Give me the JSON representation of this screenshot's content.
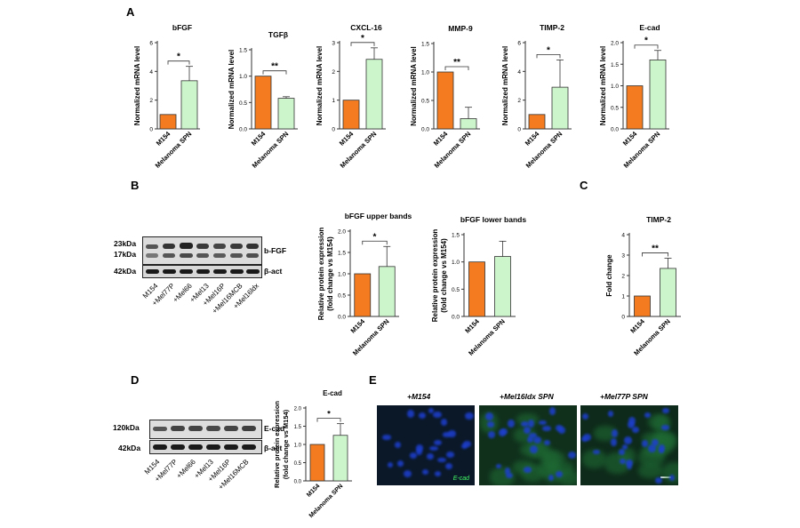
{
  "panels": {
    "A": "A",
    "B": "B",
    "C": "C",
    "D": "D",
    "E": "E"
  },
  "colors": {
    "control": "#f47b20",
    "treated": "#ccf5cc",
    "stroke": "#333333"
  },
  "chart_data": [
    {
      "id": "bfgf",
      "type": "bar",
      "title": "bFGF",
      "ylabel": "Normalized mRNA level",
      "categories": [
        "M154",
        "Melanoma SPN"
      ],
      "values": [
        1.0,
        3.35
      ],
      "errors": [
        0,
        1.0
      ],
      "ylim": [
        0,
        6
      ],
      "yticks": [
        "0",
        "2",
        "4",
        "6"
      ],
      "sig": "*"
    },
    {
      "id": "tgfb",
      "type": "bar",
      "title": "TGFβ",
      "ylabel": "Normalized mRNA level",
      "categories": [
        "M154",
        "Melanoma SPN"
      ],
      "values": [
        1.0,
        0.58
      ],
      "errors": [
        0,
        0.03
      ],
      "ylim": [
        0,
        1.5
      ],
      "yticks": [
        "0.0",
        "0.5",
        "1.0",
        "1.5"
      ],
      "sig": "**"
    },
    {
      "id": "cxcl16",
      "type": "bar",
      "title": "CXCL-16",
      "ylabel": "Normalized mRNA level",
      "categories": [
        "M154",
        "Melanoma SPN"
      ],
      "values": [
        1.0,
        2.42
      ],
      "errors": [
        0,
        0.4
      ],
      "ylim": [
        0,
        3
      ],
      "yticks": [
        "0",
        "1",
        "2",
        "3"
      ],
      "sig": "*"
    },
    {
      "id": "mmp9",
      "type": "bar",
      "title": "MMP-9",
      "ylabel": "Normalized mRNA level",
      "categories": [
        "M154",
        "Melanoma SPN"
      ],
      "values": [
        1.0,
        0.18
      ],
      "errors": [
        0,
        0.2
      ],
      "ylim": [
        0,
        1.5
      ],
      "yticks": [
        "0.0",
        "0.5",
        "1.0",
        "1.5"
      ],
      "sig": "**"
    },
    {
      "id": "timp2a",
      "type": "bar",
      "title": "TIMP-2",
      "ylabel": "Normalized mRNA level",
      "categories": [
        "M154",
        "Melanoma SPN"
      ],
      "values": [
        1.0,
        2.9
      ],
      "errors": [
        0,
        1.9
      ],
      "ylim": [
        0,
        6
      ],
      "yticks": [
        "0",
        "2",
        "4",
        "6"
      ],
      "sig": "*"
    },
    {
      "id": "ecad_mrna",
      "type": "bar",
      "title": "E-cad",
      "ylabel": "Normalized mRNA level",
      "categories": [
        "M154",
        "Melanoma SPN"
      ],
      "values": [
        1.0,
        1.6
      ],
      "errors": [
        0,
        0.22
      ],
      "ylim": [
        0,
        2.0
      ],
      "yticks": [
        "0.0",
        "0.5",
        "1.0",
        "1.5",
        "2.0"
      ],
      "sig": "*"
    },
    {
      "id": "bfgf_upper",
      "type": "bar",
      "title": "bFGF upper bands",
      "ylabel": "Relative protein expression",
      "ylabel2": "(fold change vs M154)",
      "categories": [
        "M154",
        "Melanoma SPN"
      ],
      "values": [
        1.0,
        1.17
      ],
      "errors": [
        0,
        0.47
      ],
      "ylim": [
        0,
        2.0
      ],
      "yticks": [
        "0.0",
        "0.5",
        "1.0",
        "1.5",
        "2.0"
      ],
      "sig": "*"
    },
    {
      "id": "bfgf_lower",
      "type": "bar",
      "title": "bFGF lower bands",
      "ylabel": "Relative protein expression",
      "ylabel2": "(fold change vs M154)",
      "categories": [
        "M154",
        "Melanoma SPN"
      ],
      "values": [
        1.0,
        1.1
      ],
      "errors": [
        0,
        0.28
      ],
      "ylim": [
        0,
        1.5
      ],
      "yticks": [
        "0.0",
        "0.5",
        "1.0",
        "1.5"
      ],
      "sig": ""
    },
    {
      "id": "timp2c",
      "type": "bar",
      "title": "TIMP-2",
      "ylabel": "Fold change",
      "categories": [
        "M154",
        "Melanoma SPN"
      ],
      "values": [
        1.0,
        2.35
      ],
      "errors": [
        0,
        0.5
      ],
      "ylim": [
        0,
        4
      ],
      "yticks": [
        "0",
        "1",
        "2",
        "3",
        "4"
      ],
      "sig": "**"
    },
    {
      "id": "ecad_protein",
      "type": "bar",
      "title": "E-cad",
      "ylabel": "Relative protein expression",
      "ylabel2": "(fold change vs M154)",
      "categories": [
        "M154",
        "Melanoma SPN"
      ],
      "values": [
        1.0,
        1.25
      ],
      "errors": [
        0,
        0.32
      ],
      "ylim": [
        0,
        2.0
      ],
      "yticks": [
        "0.0",
        "0.5",
        "1.0",
        "1.5",
        "2.0"
      ],
      "sig": "*"
    }
  ],
  "blot_b": {
    "kda": [
      "23kDa",
      "17kDa",
      "42kDa"
    ],
    "targets": [
      "b-FGF",
      "β-act"
    ],
    "lanes": [
      "M154",
      "+Mel77P",
      "+Mel66",
      "+Mel13",
      "+Mel16P",
      "+Mel16MCB",
      "+Mel16ldx"
    ]
  },
  "blot_d": {
    "kda": [
      "120kDa",
      "42kDa"
    ],
    "targets": [
      "E-cad",
      "β-act"
    ],
    "lanes": [
      "M154",
      "+Mel77P",
      "+Mel66",
      "+Mel13",
      "+Mel16P",
      "+Mel16MCB"
    ]
  },
  "micrographs": {
    "titles": [
      "+M154",
      "+Mel16ldx SPN",
      "+Mel77P SPN"
    ],
    "stain_label": "E-cad"
  }
}
